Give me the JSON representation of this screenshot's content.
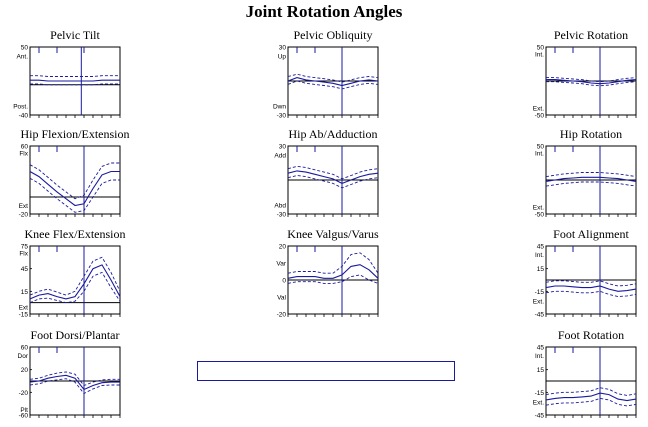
{
  "title": "Joint Rotation Angles",
  "colors": {
    "series": "#1a1aa0",
    "axis": "#000000"
  },
  "chart_data": [
    {
      "id": "pelvic-tilt",
      "type": "line",
      "title": "Pelvic Tilt",
      "ylim": [
        -40,
        50
      ],
      "yticks": [
        "50",
        "-40"
      ],
      "ylabels": [
        {
          "text": "Ant.",
          "y": 38
        },
        {
          "text": "Post.",
          "y": -28
        }
      ],
      "zero_line": 0,
      "event_x": 0.57,
      "x": [
        0,
        0.1,
        0.2,
        0.3,
        0.4,
        0.5,
        0.6,
        0.7,
        0.8,
        0.9,
        1.0
      ],
      "mean": [
        6,
        6,
        5,
        5,
        5,
        5,
        5,
        5,
        6,
        6,
        6
      ],
      "upper": [
        12,
        12,
        11,
        11,
        11,
        11,
        11,
        11,
        12,
        12,
        12
      ],
      "lower": [
        1,
        1,
        0,
        0,
        0,
        0,
        0,
        0,
        1,
        1,
        1
      ]
    },
    {
      "id": "pelvic-obliquity",
      "type": "line",
      "title": "Pelvic Obliquity",
      "ylim": [
        -30,
        30
      ],
      "yticks": [
        "30",
        "-30"
      ],
      "ylabels": [
        {
          "text": "Up",
          "y": 22
        },
        {
          "text": "Dwn",
          "y": -22
        }
      ],
      "zero_line": 0,
      "event_x": 0.6,
      "x": [
        0,
        0.1,
        0.2,
        0.3,
        0.4,
        0.5,
        0.6,
        0.7,
        0.8,
        0.9,
        1.0
      ],
      "mean": [
        0,
        3,
        1,
        0,
        -1,
        -2,
        -4,
        -2,
        0,
        1,
        0
      ],
      "upper": [
        4,
        6,
        4,
        3,
        2,
        1,
        -1,
        1,
        3,
        4,
        3
      ],
      "lower": [
        -3,
        0,
        -2,
        -3,
        -4,
        -5,
        -7,
        -5,
        -3,
        -2,
        -3
      ]
    },
    {
      "id": "pelvic-rotation",
      "type": "line",
      "title": "Pelvic Rotation",
      "ylim": [
        -50,
        50
      ],
      "yticks": [
        "50",
        "-50"
      ],
      "ylabels": [
        {
          "text": "Int.",
          "y": 40
        },
        {
          "text": "Ext.",
          "y": -40
        }
      ],
      "zero_line": 0,
      "event_x": 0.6,
      "x": [
        0,
        0.1,
        0.2,
        0.3,
        0.4,
        0.5,
        0.6,
        0.7,
        0.8,
        0.9,
        1.0
      ],
      "mean": [
        2,
        2,
        1,
        0,
        -1,
        -3,
        -4,
        -3,
        -1,
        1,
        2
      ],
      "upper": [
        5,
        5,
        4,
        3,
        2,
        0,
        -1,
        0,
        2,
        4,
        5
      ],
      "lower": [
        -1,
        -1,
        -2,
        -3,
        -4,
        -6,
        -7,
        -6,
        -4,
        -2,
        -1
      ]
    },
    {
      "id": "hip-flexion",
      "type": "line",
      "title": "Hip Flexion/Extension",
      "ylim": [
        -20,
        60
      ],
      "yticks": [
        "60",
        "-20"
      ],
      "ylabels": [
        {
          "text": "Flx",
          "y": 52
        },
        {
          "text": "Ext",
          "y": -10
        }
      ],
      "zero_line": 0,
      "event_x": 0.6,
      "x": [
        0,
        0.1,
        0.2,
        0.3,
        0.4,
        0.5,
        0.6,
        0.7,
        0.8,
        0.9,
        1.0
      ],
      "mean": [
        30,
        24,
        15,
        6,
        -2,
        -10,
        -8,
        10,
        26,
        30,
        30
      ],
      "upper": [
        38,
        32,
        23,
        14,
        6,
        -2,
        2,
        20,
        36,
        40,
        40
      ],
      "lower": [
        22,
        16,
        7,
        -2,
        -10,
        -18,
        -16,
        0,
        16,
        20,
        20
      ]
    },
    {
      "id": "hip-abduction",
      "type": "line",
      "title": "Hip Ab/Adduction",
      "ylim": [
        -30,
        30
      ],
      "yticks": [
        "30",
        "-30"
      ],
      "ylabels": [
        {
          "text": "Add",
          "y": 22
        },
        {
          "text": "Abd",
          "y": -22
        }
      ],
      "zero_line": 0,
      "event_x": 0.6,
      "x": [
        0,
        0.1,
        0.2,
        0.3,
        0.4,
        0.5,
        0.6,
        0.7,
        0.8,
        0.9,
        1.0
      ],
      "mean": [
        6,
        8,
        7,
        5,
        3,
        1,
        -3,
        0,
        3,
        5,
        6
      ],
      "upper": [
        10,
        12,
        11,
        9,
        7,
        5,
        1,
        4,
        7,
        9,
        10
      ],
      "lower": [
        2,
        4,
        3,
        1,
        -1,
        -3,
        -7,
        -4,
        -1,
        1,
        2
      ]
    },
    {
      "id": "hip-rotation",
      "type": "line",
      "title": "Hip Rotation",
      "ylim": [
        -50,
        50
      ],
      "yticks": [
        "50",
        "-50"
      ],
      "ylabels": [
        {
          "text": "Int.",
          "y": 40
        },
        {
          "text": "Ext.",
          "y": -40
        }
      ],
      "zero_line": 0,
      "event_x": 0.6,
      "x": [
        0,
        0.1,
        0.2,
        0.3,
        0.4,
        0.5,
        0.6,
        0.7,
        0.8,
        0.9,
        1.0
      ],
      "mean": [
        -2,
        0,
        2,
        3,
        4,
        4,
        4,
        3,
        2,
        0,
        -2
      ],
      "upper": [
        5,
        7,
        9,
        10,
        11,
        11,
        11,
        10,
        9,
        7,
        5
      ],
      "lower": [
        -9,
        -7,
        -5,
        -4,
        -3,
        -3,
        -3,
        -4,
        -5,
        -7,
        -9
      ]
    },
    {
      "id": "knee-flexion",
      "type": "line",
      "title": "Knee Flex/Extension",
      "ylim": [
        -15,
        75
      ],
      "yticks": [
        "75",
        "45",
        "15",
        "-15"
      ],
      "ylabels": [
        {
          "text": "Flx",
          "y": 66
        },
        {
          "text": "Ext",
          "y": -6
        }
      ],
      "zero_line": 0,
      "event_x": 0.6,
      "x": [
        0,
        0.1,
        0.2,
        0.3,
        0.4,
        0.5,
        0.6,
        0.7,
        0.8,
        0.9,
        1.0
      ],
      "mean": [
        5,
        10,
        12,
        8,
        5,
        8,
        25,
        45,
        50,
        30,
        8
      ],
      "upper": [
        10,
        15,
        18,
        14,
        10,
        15,
        35,
        55,
        60,
        40,
        15
      ],
      "lower": [
        0,
        5,
        6,
        3,
        0,
        2,
        15,
        35,
        40,
        20,
        2
      ]
    },
    {
      "id": "knee-valgus",
      "type": "line",
      "title": "Knee Valgus/Varus",
      "ylim": [
        -20,
        20
      ],
      "yticks": [
        "20",
        "0",
        "-20"
      ],
      "ylabels": [
        {
          "text": "Var",
          "y": 10
        },
        {
          "text": "Val",
          "y": -10
        }
      ],
      "zero_line": 0,
      "event_x": 0.6,
      "x": [
        0,
        0.1,
        0.2,
        0.3,
        0.4,
        0.5,
        0.6,
        0.7,
        0.8,
        0.9,
        1.0
      ],
      "mean": [
        1,
        2,
        2,
        2,
        1,
        1,
        3,
        8,
        9,
        6,
        1
      ],
      "upper": [
        4,
        5,
        5,
        5,
        4,
        4,
        8,
        15,
        16,
        12,
        4
      ],
      "lower": [
        -2,
        -1,
        -1,
        -1,
        -2,
        -2,
        -1,
        2,
        3,
        0,
        -2
      ]
    },
    {
      "id": "foot-alignment",
      "type": "line",
      "title": "Foot Alignment",
      "ylim": [
        -45,
        45
      ],
      "yticks": [
        "45",
        "15",
        "-15",
        "-45"
      ],
      "ylabels": [
        {
          "text": "Int.",
          "y": 34
        },
        {
          "text": "Ext.",
          "y": -28
        }
      ],
      "zero_line": 0,
      "event_x": 0.6,
      "x": [
        0,
        0.1,
        0.2,
        0.3,
        0.4,
        0.5,
        0.6,
        0.7,
        0.8,
        0.9,
        1.0
      ],
      "mean": [
        -10,
        -8,
        -8,
        -9,
        -10,
        -10,
        -8,
        -12,
        -15,
        -14,
        -12
      ],
      "upper": [
        -3,
        -1,
        -1,
        -2,
        -3,
        -3,
        -1,
        -5,
        -8,
        -7,
        -5
      ],
      "lower": [
        -17,
        -15,
        -15,
        -16,
        -17,
        -17,
        -15,
        -19,
        -22,
        -21,
        -19
      ]
    },
    {
      "id": "foot-dorsi",
      "type": "line",
      "title": "Foot Dorsi/Plantar",
      "ylim": [
        -60,
        60
      ],
      "yticks": [
        "60",
        "20",
        "-20",
        "-60"
      ],
      "ylabels": [
        {
          "text": "Dor",
          "y": 45
        },
        {
          "text": "Plt",
          "y": -50
        }
      ],
      "zero_line": 0,
      "event_x": 0.6,
      "x": [
        0,
        0.1,
        0.2,
        0.3,
        0.4,
        0.5,
        0.6,
        0.7,
        0.8,
        0.9,
        1.0
      ],
      "mean": [
        -2,
        0,
        5,
        8,
        10,
        5,
        -15,
        -8,
        -3,
        -2,
        -2
      ],
      "upper": [
        3,
        5,
        10,
        14,
        16,
        12,
        -8,
        -2,
        2,
        3,
        3
      ],
      "lower": [
        -7,
        -5,
        0,
        2,
        4,
        -2,
        -22,
        -14,
        -8,
        -7,
        -7
      ]
    },
    {
      "id": "foot-rotation",
      "type": "line",
      "title": "Foot Rotation",
      "ylim": [
        -45,
        45
      ],
      "yticks": [
        "45",
        "15",
        "-15",
        "-45"
      ],
      "ylabels": [
        {
          "text": "Int.",
          "y": 34
        },
        {
          "text": "Ext.",
          "y": -28
        }
      ],
      "zero_line": 0,
      "event_x": 0.6,
      "x": [
        0,
        0.1,
        0.2,
        0.3,
        0.4,
        0.5,
        0.6,
        0.7,
        0.8,
        0.9,
        1.0
      ],
      "mean": [
        -25,
        -23,
        -22,
        -22,
        -21,
        -20,
        -16,
        -18,
        -24,
        -26,
        -24
      ],
      "upper": [
        -18,
        -16,
        -15,
        -15,
        -14,
        -13,
        -9,
        -11,
        -17,
        -19,
        -17
      ],
      "lower": [
        -32,
        -30,
        -29,
        -29,
        -28,
        -27,
        -23,
        -25,
        -31,
        -33,
        -31
      ]
    }
  ]
}
